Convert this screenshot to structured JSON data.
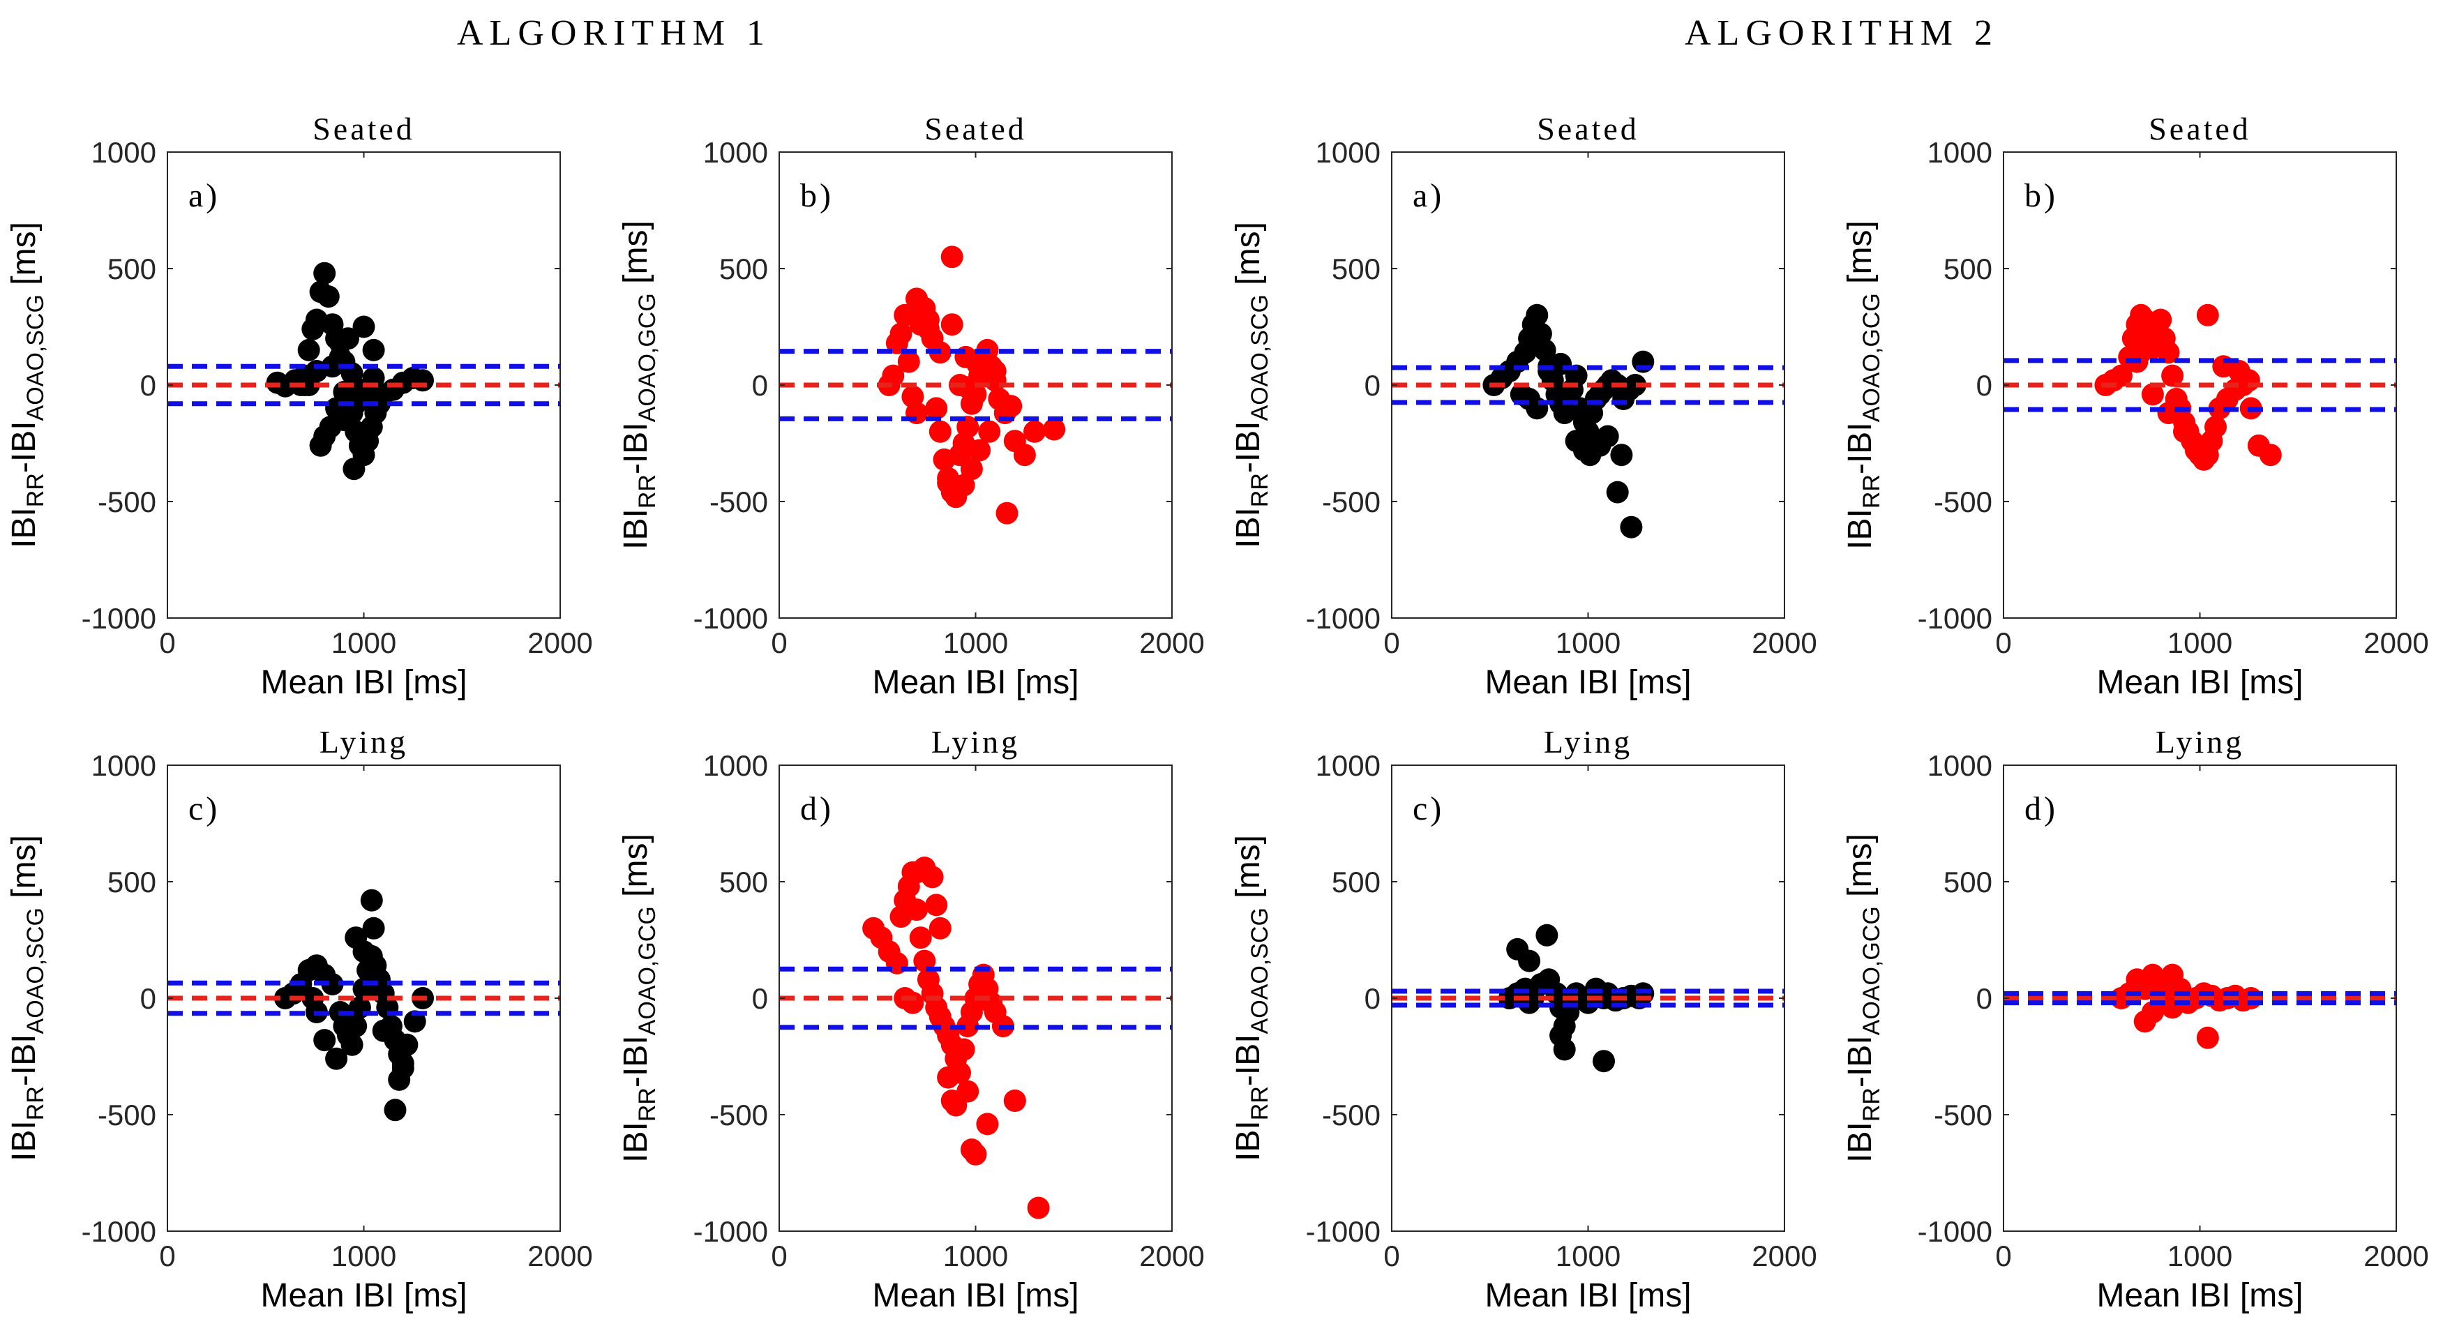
{
  "figure": {
    "algorithm_titles": [
      "ALGORITHM 1",
      "ALGORITHM 2"
    ]
  },
  "colors": {
    "black_points": "#000000",
    "red_points": "#ff0000",
    "mean_line": "#e8231c",
    "limit_lines": "#1010e6",
    "axes": "#262626"
  },
  "chart_data": [
    {
      "type": "scatter",
      "algorithm": "ALGORITHM 1",
      "panel": "a)",
      "title": "Seated",
      "xlabel": "Mean IBI  [ms]",
      "ylabel_main": "IBI",
      "ylabel_sub1": "RR",
      "ylabel_mid": "-IBI",
      "ylabel_sub2": "AOAO,SCG",
      "ylabel_unit": " [ms]",
      "xlim": [
        0,
        2000
      ],
      "ylim": [
        -1000,
        1000
      ],
      "xticks": [
        0,
        1000,
        2000
      ],
      "yticks": [
        -1000,
        -500,
        0,
        500,
        1000
      ],
      "point_color": "black",
      "mean": 0,
      "loa": [
        -80,
        80
      ],
      "x": [
        560,
        600,
        650,
        700,
        720,
        740,
        760,
        780,
        800,
        820,
        840,
        860,
        880,
        900,
        920,
        940,
        960,
        980,
        1000,
        1020,
        1040,
        1060,
        1080,
        1100,
        1150,
        1200,
        1250,
        1300,
        830,
        800,
        780,
        760,
        840,
        860,
        900,
        950,
        1000,
        1050,
        880,
        920,
        960,
        980,
        900,
        940,
        1000,
        1050,
        700,
        680,
        720
      ],
      "y": [
        10,
        -5,
        20,
        40,
        150,
        240,
        280,
        400,
        480,
        380,
        260,
        200,
        120,
        100,
        -60,
        -120,
        -200,
        -260,
        -300,
        -240,
        -180,
        -120,
        -80,
        -40,
        -20,
        10,
        30,
        20,
        -180,
        -220,
        -260,
        60,
        80,
        -100,
        -150,
        -360,
        250,
        150,
        180,
        200,
        -80,
        -50,
        -30,
        50,
        -20,
        30,
        0,
        0,
        0
      ]
    },
    {
      "type": "scatter",
      "algorithm": "ALGORITHM 1",
      "panel": "b)",
      "title": "Seated",
      "xlabel": "Mean IBI  [ms]",
      "ylabel_main": "IBI",
      "ylabel_sub1": "RR",
      "ylabel_mid": "-IBI",
      "ylabel_sub2": "AOAO,GCG",
      "ylabel_unit": " [ms]",
      "xlim": [
        0,
        2000
      ],
      "ylim": [
        -1000,
        1000
      ],
      "xticks": [
        0,
        1000,
        2000
      ],
      "yticks": [
        -1000,
        -500,
        0,
        500,
        1000
      ],
      "point_color": "red",
      "mean": 0,
      "loa": [
        -145,
        145
      ],
      "x": [
        560,
        580,
        600,
        620,
        640,
        660,
        680,
        700,
        720,
        740,
        760,
        780,
        800,
        820,
        840,
        860,
        880,
        900,
        920,
        940,
        960,
        980,
        1000,
        1020,
        1040,
        1060,
        1080,
        1100,
        1120,
        1150,
        1200,
        1250,
        1300,
        1400,
        860,
        900,
        940,
        980,
        1020,
        1070,
        1160,
        700,
        760,
        820,
        880,
        950,
        1010,
        1100,
        1180,
        880,
        920,
        960
      ],
      "y": [
        0,
        40,
        180,
        220,
        300,
        100,
        -50,
        -120,
        260,
        330,
        280,
        200,
        -100,
        -200,
        -320,
        -400,
        -460,
        -480,
        -300,
        -250,
        -180,
        -80,
        -40,
        40,
        100,
        150,
        80,
        20,
        -60,
        -120,
        -240,
        -300,
        -200,
        -190,
        -420,
        -470,
        -430,
        -360,
        -280,
        -200,
        -550,
        370,
        240,
        140,
        260,
        120,
        90,
        60,
        -90,
        550,
        0,
        -10
      ]
    },
    {
      "type": "scatter",
      "algorithm": "ALGORITHM 2",
      "panel": "a)",
      "title": "Seated",
      "xlabel": "Mean IBI  [ms]",
      "ylabel_main": "IBI",
      "ylabel_sub1": "RR",
      "ylabel_mid": "-IBI",
      "ylabel_sub2": "AOAO,SCG",
      "ylabel_unit": " [ms]",
      "xlim": [
        0,
        2000
      ],
      "ylim": [
        -1000,
        1000
      ],
      "xticks": [
        0,
        1000,
        2000
      ],
      "yticks": [
        -1000,
        -500,
        0,
        500,
        1000
      ],
      "point_color": "black",
      "mean": 0,
      "loa": [
        -75,
        75
      ],
      "x": [
        520,
        560,
        600,
        640,
        680,
        700,
        720,
        740,
        760,
        780,
        800,
        820,
        840,
        860,
        880,
        900,
        920,
        940,
        960,
        980,
        1000,
        1020,
        1040,
        1060,
        1080,
        1100,
        1120,
        1150,
        1180,
        1210,
        1240,
        1280,
        940,
        980,
        1010,
        1060,
        1100,
        1150,
        1170,
        1220,
        740,
        700,
        660,
        800,
        860
      ],
      "y": [
        0,
        30,
        60,
        100,
        140,
        200,
        260,
        300,
        220,
        150,
        80,
        20,
        -40,
        -80,
        -120,
        -60,
        -20,
        40,
        -100,
        -160,
        -200,
        -120,
        -60,
        -40,
        -20,
        0,
        20,
        0,
        -60,
        -20,
        0,
        100,
        -240,
        -280,
        -300,
        -260,
        -220,
        -460,
        -300,
        -610,
        -100,
        -60,
        -40,
        60,
        90
      ]
    },
    {
      "type": "scatter",
      "algorithm": "ALGORITHM 2",
      "panel": "b)",
      "title": "Seated",
      "xlabel": "Mean IBI  [ms]",
      "ylabel_main": "IBI",
      "ylabel_sub1": "RR",
      "ylabel_mid": "-IBI",
      "ylabel_sub2": "AOAO,GCG",
      "ylabel_unit": " [ms]",
      "xlim": [
        0,
        2000
      ],
      "ylim": [
        -1000,
        1000
      ],
      "xticks": [
        0,
        1000,
        2000
      ],
      "yticks": [
        -1000,
        -500,
        0,
        500,
        1000
      ],
      "point_color": "red",
      "mean": 0,
      "loa": [
        -105,
        105
      ],
      "x": [
        520,
        560,
        600,
        640,
        660,
        680,
        700,
        720,
        740,
        760,
        780,
        800,
        820,
        840,
        860,
        880,
        900,
        920,
        940,
        960,
        980,
        1000,
        1020,
        1040,
        1060,
        1080,
        1100,
        1140,
        1180,
        1220,
        1260,
        1300,
        1360,
        760,
        840,
        920,
        1040,
        1120,
        1200,
        1250,
        680,
        700,
        740
      ],
      "y": [
        0,
        20,
        40,
        120,
        200,
        260,
        300,
        280,
        220,
        160,
        240,
        280,
        200,
        140,
        40,
        -60,
        -100,
        -160,
        -200,
        -240,
        -280,
        -300,
        -320,
        -300,
        -240,
        -180,
        -100,
        -60,
        -20,
        0,
        -100,
        -260,
        -300,
        -40,
        -120,
        -200,
        300,
        80,
        60,
        20,
        100,
        140,
        180
      ]
    },
    {
      "type": "scatter",
      "algorithm": "ALGORITHM 1",
      "panel": "c)",
      "title": "Lying",
      "xlabel": "Mean IBI  [ms]",
      "ylabel_main": "IBI",
      "ylabel_sub1": "RR",
      "ylabel_mid": "-IBI",
      "ylabel_sub2": "AOAO,SCG",
      "ylabel_unit": " [ms]",
      "xlim": [
        0,
        2000
      ],
      "ylim": [
        -1000,
        1000
      ],
      "xticks": [
        0,
        1000,
        2000
      ],
      "yticks": [
        -1000,
        -500,
        0,
        500,
        1000
      ],
      "point_color": "black",
      "mean": 0,
      "loa": [
        -65,
        65
      ],
      "x": [
        600,
        640,
        680,
        720,
        760,
        800,
        840,
        880,
        900,
        920,
        940,
        960,
        980,
        1000,
        1020,
        1040,
        1060,
        1080,
        1100,
        1120,
        1140,
        1160,
        1180,
        1200,
        1220,
        1260,
        1300,
        800,
        860,
        900,
        960,
        1000,
        1040,
        1100,
        1160,
        1180,
        1200,
        1050,
        760,
        740
      ],
      "y": [
        0,
        20,
        60,
        120,
        140,
        100,
        60,
        -60,
        -120,
        -160,
        -200,
        -120,
        -40,
        40,
        120,
        180,
        140,
        80,
        20,
        -40,
        -120,
        -180,
        -240,
        -300,
        -200,
        -100,
        0,
        -180,
        -260,
        -80,
        260,
        200,
        420,
        -140,
        -480,
        -350,
        -280,
        300,
        -60,
        0
      ]
    },
    {
      "type": "scatter",
      "algorithm": "ALGORITHM 1",
      "panel": "d)",
      "title": "Lying",
      "xlabel": "Mean IBI  [ms]",
      "ylabel_main": "IBI",
      "ylabel_sub1": "RR",
      "ylabel_mid": "-IBI",
      "ylabel_sub2": "AOAO,GCG",
      "ylabel_unit": " [ms]",
      "xlim": [
        0,
        2000
      ],
      "ylim": [
        -1000,
        1000
      ],
      "xticks": [
        0,
        1000,
        2000
      ],
      "yticks": [
        -1000,
        -500,
        0,
        500,
        1000
      ],
      "point_color": "red",
      "mean": 0,
      "loa": [
        -125,
        125
      ],
      "x": [
        480,
        520,
        560,
        600,
        620,
        640,
        660,
        680,
        700,
        720,
        740,
        760,
        780,
        800,
        820,
        840,
        860,
        880,
        900,
        920,
        940,
        960,
        980,
        1000,
        1020,
        1040,
        1060,
        1080,
        1100,
        1140,
        1200,
        1320,
        700,
        740,
        780,
        800,
        820,
        860,
        880,
        900,
        960,
        980,
        1000,
        1060,
        1200,
        640,
        680
      ],
      "y": [
        300,
        260,
        200,
        150,
        350,
        420,
        480,
        540,
        380,
        260,
        160,
        80,
        20,
        -40,
        -80,
        -120,
        -160,
        -200,
        -260,
        -320,
        -220,
        -120,
        -60,
        0,
        60,
        100,
        40,
        -20,
        -60,
        -120,
        -440,
        -900,
        540,
        560,
        520,
        400,
        300,
        -340,
        -440,
        -460,
        -400,
        -650,
        -670,
        -540,
        -440,
        0,
        -20
      ]
    },
    {
      "type": "scatter",
      "algorithm": "ALGORITHM 2",
      "panel": "c)",
      "title": "Lying",
      "xlabel": "Mean IBI  [ms]",
      "ylabel_main": "IBI",
      "ylabel_sub1": "RR",
      "ylabel_mid": "-IBI",
      "ylabel_sub2": "AOAO,SCG",
      "ylabel_unit": " [ms]",
      "xlim": [
        0,
        2000
      ],
      "ylim": [
        -1000,
        1000
      ],
      "xticks": [
        0,
        1000,
        2000
      ],
      "yticks": [
        -1000,
        -500,
        0,
        500,
        1000
      ],
      "point_color": "black",
      "mean": 0,
      "loa": [
        -30,
        30
      ],
      "x": [
        600,
        640,
        680,
        700,
        720,
        760,
        800,
        840,
        860,
        880,
        900,
        940,
        980,
        1000,
        1040,
        1080,
        1100,
        1140,
        1180,
        1220,
        1260,
        1280,
        640,
        700,
        790,
        860,
        880,
        1080
      ],
      "y": [
        0,
        20,
        40,
        -20,
        0,
        60,
        80,
        20,
        -40,
        -120,
        -60,
        20,
        0,
        -20,
        40,
        0,
        20,
        -10,
        0,
        10,
        0,
        20,
        210,
        160,
        270,
        -160,
        -220,
        -270
      ]
    },
    {
      "type": "scatter",
      "algorithm": "ALGORITHM 2",
      "panel": "d)",
      "title": "Lying",
      "xlabel": "Mean IBI  [ms]",
      "ylabel_main": "IBI",
      "ylabel_sub1": "RR",
      "ylabel_mid": "-IBI",
      "ylabel_sub2": "AOAO,GCG",
      "ylabel_unit": " [ms]",
      "xlim": [
        0,
        2000
      ],
      "ylim": [
        -1000,
        1000
      ],
      "xticks": [
        0,
        1000,
        2000
      ],
      "yticks": [
        -1000,
        -500,
        0,
        500,
        1000
      ],
      "point_color": "red",
      "mean": 0,
      "loa": [
        -20,
        20
      ],
      "x": [
        600,
        640,
        680,
        720,
        760,
        800,
        840,
        860,
        900,
        940,
        980,
        1020,
        1060,
        1100,
        1140,
        1180,
        1220,
        1260,
        720,
        760,
        860,
        1040
      ],
      "y": [
        0,
        20,
        80,
        40,
        -60,
        20,
        60,
        100,
        40,
        -20,
        0,
        20,
        10,
        -10,
        0,
        10,
        -10,
        0,
        -100,
        100,
        -40,
        -170
      ]
    }
  ]
}
